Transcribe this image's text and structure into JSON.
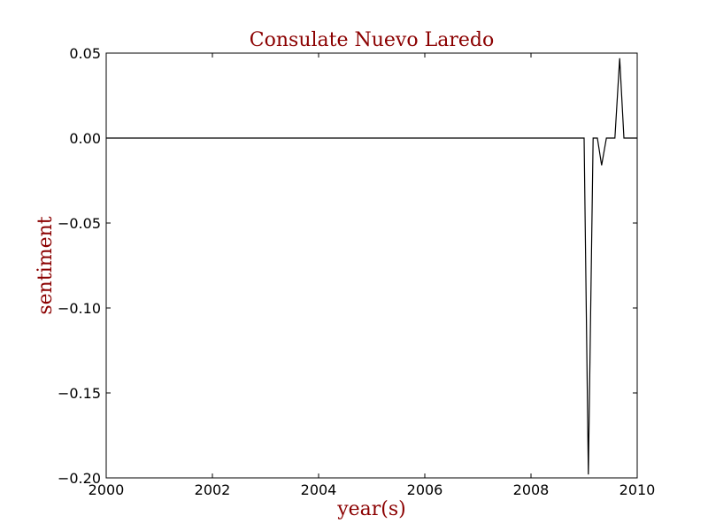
{
  "chart_data": {
    "type": "line",
    "title": "Consulate Nuevo Laredo",
    "xlabel": "year(s)",
    "ylabel": "sentiment",
    "xlim": [
      2000,
      2010
    ],
    "ylim": [
      -0.2,
      0.05
    ],
    "grid": false,
    "colors": {
      "title": "#8b0000",
      "axis_labels": "#8b0000",
      "line": "#000000",
      "axes": "#000000"
    },
    "x_ticks": [
      {
        "value": 2000,
        "label": "2000"
      },
      {
        "value": 2002,
        "label": "2002"
      },
      {
        "value": 2004,
        "label": "2004"
      },
      {
        "value": 2006,
        "label": "2006"
      },
      {
        "value": 2008,
        "label": "2008"
      },
      {
        "value": 2010,
        "label": "2010"
      }
    ],
    "y_ticks": [
      {
        "value": 0.05,
        "label": "0.05"
      },
      {
        "value": 0.0,
        "label": "0.00"
      },
      {
        "value": -0.05,
        "label": "−0.05"
      },
      {
        "value": -0.1,
        "label": "−0.10"
      },
      {
        "value": -0.15,
        "label": "−0.15"
      },
      {
        "value": -0.2,
        "label": "−0.20"
      }
    ],
    "series": [
      {
        "x": [
          2000.0,
          2009.0,
          2009.08,
          2009.17,
          2009.25,
          2009.33,
          2009.42,
          2009.5,
          2009.58,
          2009.67,
          2009.75,
          2009.83,
          2009.92,
          2010.0
        ],
        "y": [
          0.0,
          0.0,
          -0.198,
          0.0,
          0.0,
          -0.016,
          0.0,
          0.0,
          0.0,
          0.047,
          0.0,
          0.0,
          0.0,
          0.0
        ]
      }
    ]
  }
}
